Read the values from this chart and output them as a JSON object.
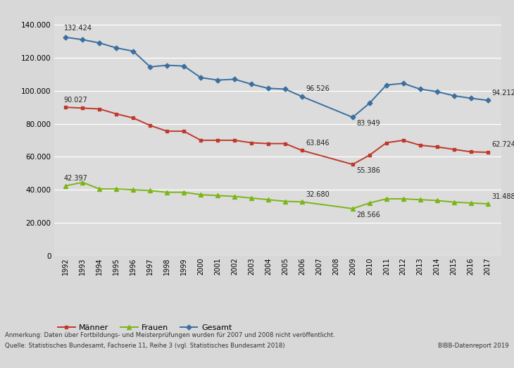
{
  "years": [
    1992,
    1993,
    1994,
    1995,
    1996,
    1997,
    1998,
    1999,
    2000,
    2001,
    2002,
    2003,
    2004,
    2005,
    2006,
    2009,
    2010,
    2011,
    2012,
    2013,
    2014,
    2015,
    2016,
    2017
  ],
  "maenner": [
    90027,
    89500,
    89000,
    86000,
    83500,
    79000,
    75500,
    75500,
    70000,
    70000,
    70000,
    68500,
    68000,
    68000,
    63846,
    55386,
    61000,
    68500,
    70000,
    67000,
    66000,
    64500,
    63000,
    62724
  ],
  "frauen": [
    42397,
    44500,
    40500,
    40500,
    40000,
    39500,
    38500,
    38500,
    37000,
    36500,
    36000,
    35000,
    34000,
    33000,
    32680,
    28566,
    32000,
    34500,
    34500,
    34000,
    33500,
    32500,
    32000,
    31488
  ],
  "gesamt": [
    132424,
    131000,
    129000,
    126000,
    124000,
    114500,
    115500,
    115000,
    108000,
    106500,
    107000,
    104000,
    101500,
    101000,
    96526,
    83949,
    92500,
    103500,
    104500,
    101000,
    99500,
    97000,
    95500,
    94212
  ],
  "color_maenner": "#C0392B",
  "color_frauen": "#7CB518",
  "color_gesamt": "#3B6FA0",
  "background_color": "#DCDCDC",
  "fig_background": "#D8D8D8",
  "ylim": [
    0,
    145000
  ],
  "yticks": [
    0,
    20000,
    40000,
    60000,
    80000,
    100000,
    120000,
    140000
  ],
  "note_line1": "Anmerkung: Daten über Fortbildungs- und Meisterprüfungen wurden für 2007 und 2008 nicht veröffentlicht.",
  "note_line2": "Quelle: Statistisches Bundesamt, Fachserie 11, Reihe 3 (vgl. Statistisches Bundesamt 2018)",
  "note_right": "BIBB-Datenreport 2019",
  "legend_maenner": "Männer",
  "legend_frauen": "Frauen",
  "legend_gesamt": "Gesamt",
  "labels_gesamt": {
    "1992": 132424,
    "2006": 96526,
    "2009": 83949,
    "2017": 94212
  },
  "labels_maenner": {
    "1992": 90027,
    "2006": 63846,
    "2009": 55386,
    "2017": 62724
  },
  "labels_frauen": {
    "1992": 42397,
    "2006": 32680,
    "2009": 28566,
    "2017": 31488
  }
}
